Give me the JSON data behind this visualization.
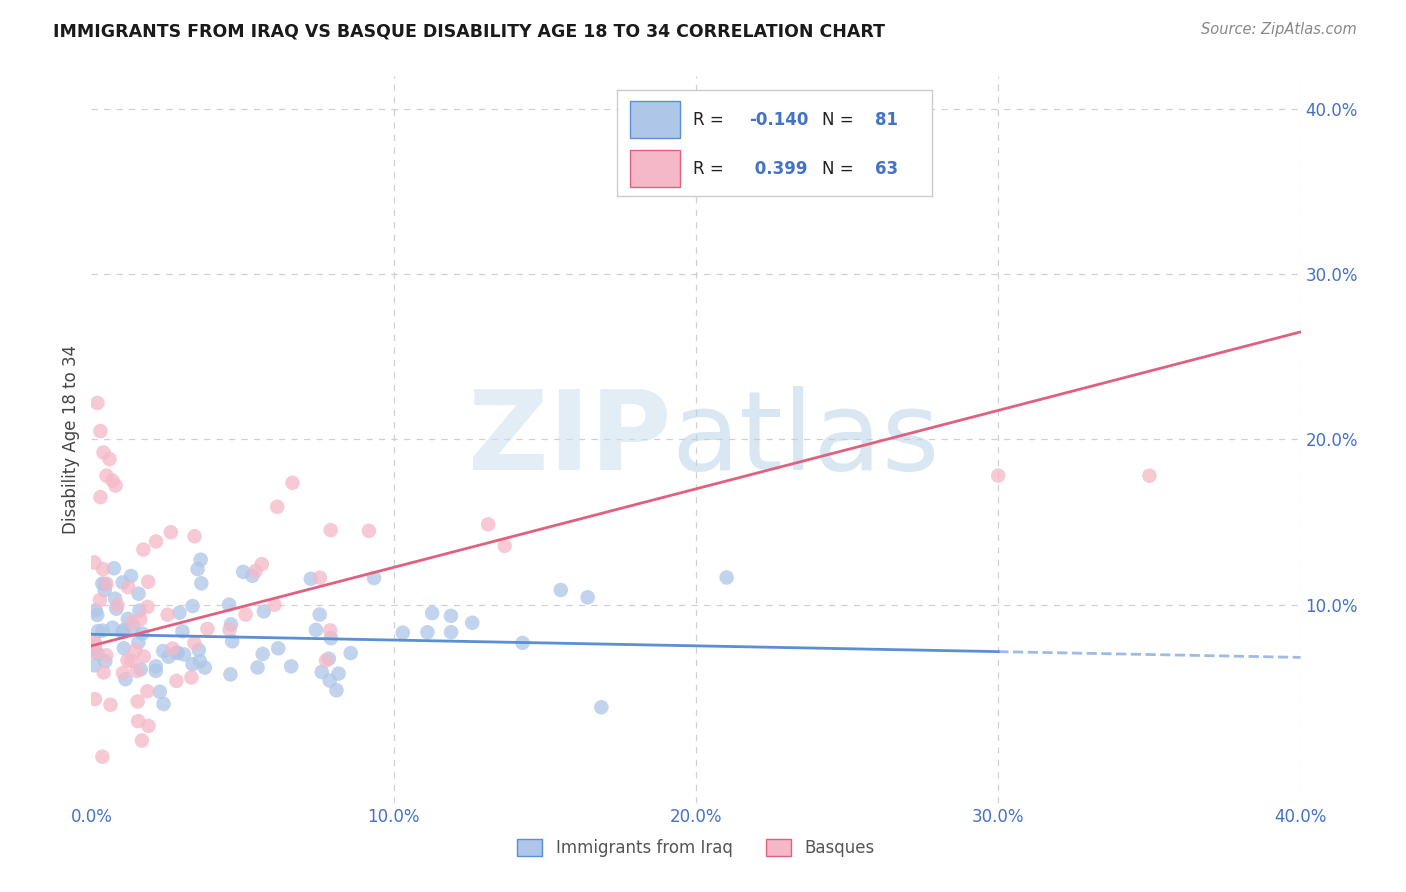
{
  "title": "IMMIGRANTS FROM IRAQ VS BASQUE DISABILITY AGE 18 TO 34 CORRELATION CHART",
  "source": "Source: ZipAtlas.com",
  "ylabel": "Disability Age 18 to 34",
  "legend_label1": "Immigrants from Iraq",
  "legend_label2": "Basques",
  "r1": -0.14,
  "n1": 81,
  "r2": 0.399,
  "n2": 63,
  "color1": "#aec6e8",
  "color2": "#f5b8c8",
  "line_color1": "#5b8fd4",
  "line_color2": "#e06080",
  "xlim": [
    0.0,
    0.4
  ],
  "ylim": [
    -0.02,
    0.42
  ],
  "xtick_labels": [
    "0.0%",
    "",
    "10.0%",
    "",
    "20.0%",
    "",
    "30.0%",
    "",
    "40.0%"
  ],
  "xtick_vals": [
    0.0,
    0.05,
    0.1,
    0.15,
    0.2,
    0.25,
    0.3,
    0.35,
    0.4
  ],
  "ytick_labels_right": [
    "10.0%",
    "20.0%",
    "30.0%",
    "40.0%"
  ],
  "ytick_vals_right": [
    0.1,
    0.2,
    0.3,
    0.4
  ],
  "background_color": "#ffffff",
  "grid_color": "#d0d0d0",
  "iraq_line_start_y": 0.082,
  "iraq_line_end_y": 0.068,
  "basque_line_start_y": 0.075,
  "basque_line_end_y": 0.265
}
